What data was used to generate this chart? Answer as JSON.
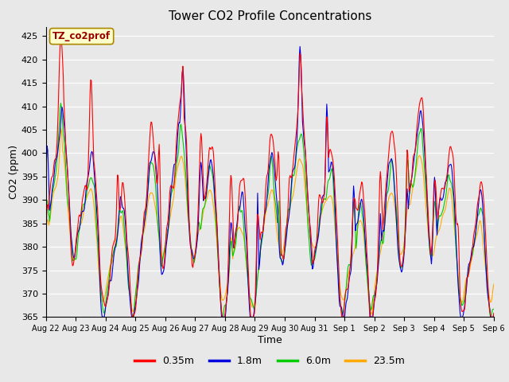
{
  "title": "Tower CO2 Profile Concentrations",
  "xlabel": "Time",
  "ylabel": "CO2 (ppm)",
  "ylim": [
    365,
    427
  ],
  "yticks": [
    365,
    370,
    375,
    380,
    385,
    390,
    395,
    400,
    405,
    410,
    415,
    420,
    425
  ],
  "series_labels": [
    "0.35m",
    "1.8m",
    "6.0m",
    "23.5m"
  ],
  "series_colors": [
    "#ff0000",
    "#0000dd",
    "#00cc00",
    "#ffaa00"
  ],
  "legend_title": "TZ_co2prof",
  "legend_title_color": "#990000",
  "legend_title_bg": "#ffffcc",
  "fig_color": "#e8e8e8",
  "plot_bg_color": "#e8e8e8",
  "linewidth": 0.8,
  "tick_labels": [
    "Aug 22",
    "Aug 23",
    "Aug 24",
    "Aug 25",
    "Aug 26",
    "Aug 27",
    "Aug 28",
    "Aug 29",
    "Aug 30",
    "Aug 31",
    "Sep 1",
    "Sep 2",
    "Sep 3",
    "Sep 4",
    "Sep 5",
    "Sep 6"
  ]
}
